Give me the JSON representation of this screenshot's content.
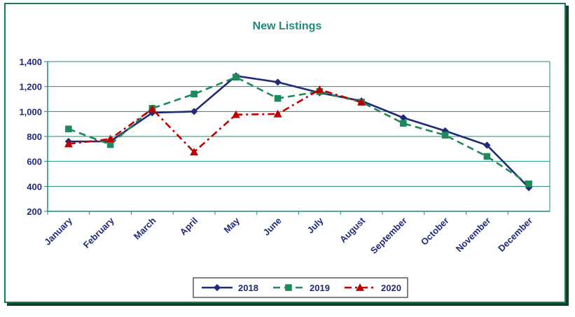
{
  "chart_data": {
    "type": "line",
    "title": "New Listings",
    "xlabel": "",
    "ylabel": "",
    "categories": [
      "January",
      "February",
      "March",
      "April",
      "May",
      "June",
      "July",
      "August",
      "September",
      "October",
      "November",
      "December"
    ],
    "ylim": [
      200,
      1400
    ],
    "yticks": [
      "200",
      "400",
      "600",
      "800",
      "1,000",
      "1,200",
      "1,400"
    ],
    "grid": true,
    "legend_position": "bottom",
    "series": [
      {
        "name": "2018",
        "color": "#1f2a7a",
        "marker": "diamond",
        "dash": "solid",
        "values": [
          760,
          760,
          990,
          1000,
          1285,
          1235,
          1150,
          1085,
          950,
          845,
          730,
          390
        ]
      },
      {
        "name": "2019",
        "color": "#1e8a5c",
        "marker": "square",
        "dash": "dash",
        "values": [
          860,
          735,
          1025,
          1140,
          1275,
          1105,
          1160,
          1075,
          905,
          810,
          640,
          420
        ]
      },
      {
        "name": "2020",
        "color": "#c00000",
        "marker": "triangle",
        "dash": "dashdot",
        "values": [
          740,
          780,
          1020,
          675,
          975,
          980,
          1175,
          1075,
          null,
          null,
          null,
          null
        ]
      }
    ]
  }
}
